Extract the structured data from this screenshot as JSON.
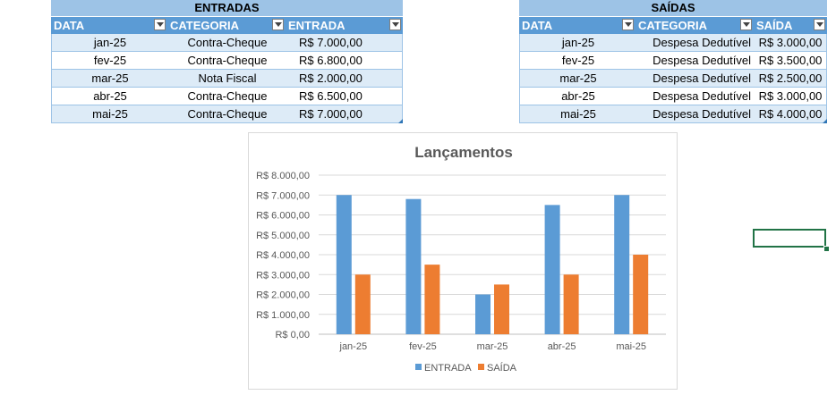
{
  "entradas": {
    "title": "ENTRADAS",
    "headers": [
      "DATA",
      "CATEGORIA",
      "ENTRADA"
    ],
    "rows": [
      {
        "data": "jan-25",
        "categoria": "Contra-Cheque",
        "valor": "R$ 7.000,00"
      },
      {
        "data": "fev-25",
        "categoria": "Contra-Cheque",
        "valor": "R$ 6.800,00"
      },
      {
        "data": "mar-25",
        "categoria": "Nota Fiscal",
        "valor": "R$ 2.000,00"
      },
      {
        "data": "abr-25",
        "categoria": "Contra-Cheque",
        "valor": "R$ 6.500,00"
      },
      {
        "data": "mai-25",
        "categoria": "Contra-Cheque",
        "valor": "R$ 7.000,00"
      }
    ]
  },
  "saidas": {
    "title": "SAÍDAS",
    "headers": [
      "DATA",
      "CATEGORIA",
      "SAÍDA"
    ],
    "rows": [
      {
        "data": "jan-25",
        "categoria": "Despesa Dedutível",
        "valor": "R$ 3.000,00"
      },
      {
        "data": "fev-25",
        "categoria": "Despesa Dedutível",
        "valor": "R$ 3.500,00"
      },
      {
        "data": "mar-25",
        "categoria": "Despesa Dedutível",
        "valor": "R$ 2.500,00"
      },
      {
        "data": "abr-25",
        "categoria": "Despesa Dedutível",
        "valor": "R$ 3.000,00"
      },
      {
        "data": "mai-25",
        "categoria": "Despesa Dedutível",
        "valor": "R$ 4.000,00"
      }
    ]
  },
  "colors": {
    "header_blue": "#5b9bd5",
    "title_blue": "#9dc3e6",
    "band_blue": "#ddebf7",
    "series_entrada": "#5b9bd5",
    "series_saida": "#ed7d31",
    "selection_green": "#217346"
  },
  "chart_data": {
    "type": "bar",
    "title": "Lançamentos",
    "categories": [
      "jan-25",
      "fev-25",
      "mar-25",
      "abr-25",
      "mai-25"
    ],
    "series": [
      {
        "name": "ENTRADA",
        "values": [
          7000,
          6800,
          2000,
          6500,
          7000
        ],
        "color": "#5b9bd5"
      },
      {
        "name": "SAÍDA",
        "values": [
          3000,
          3500,
          2500,
          3000,
          4000
        ],
        "color": "#ed7d31"
      }
    ],
    "ylim": [
      0,
      8000
    ],
    "yticks": [
      0,
      1000,
      2000,
      3000,
      4000,
      5000,
      6000,
      7000,
      8000
    ],
    "ytick_labels": [
      "R$ 0,00",
      "R$ 1.000,00",
      "R$ 2.000,00",
      "R$ 3.000,00",
      "R$ 4.000,00",
      "R$ 5.000,00",
      "R$ 6.000,00",
      "R$ 7.000,00",
      "R$ 8.000,00"
    ],
    "grid": true,
    "legend": "bottom"
  }
}
